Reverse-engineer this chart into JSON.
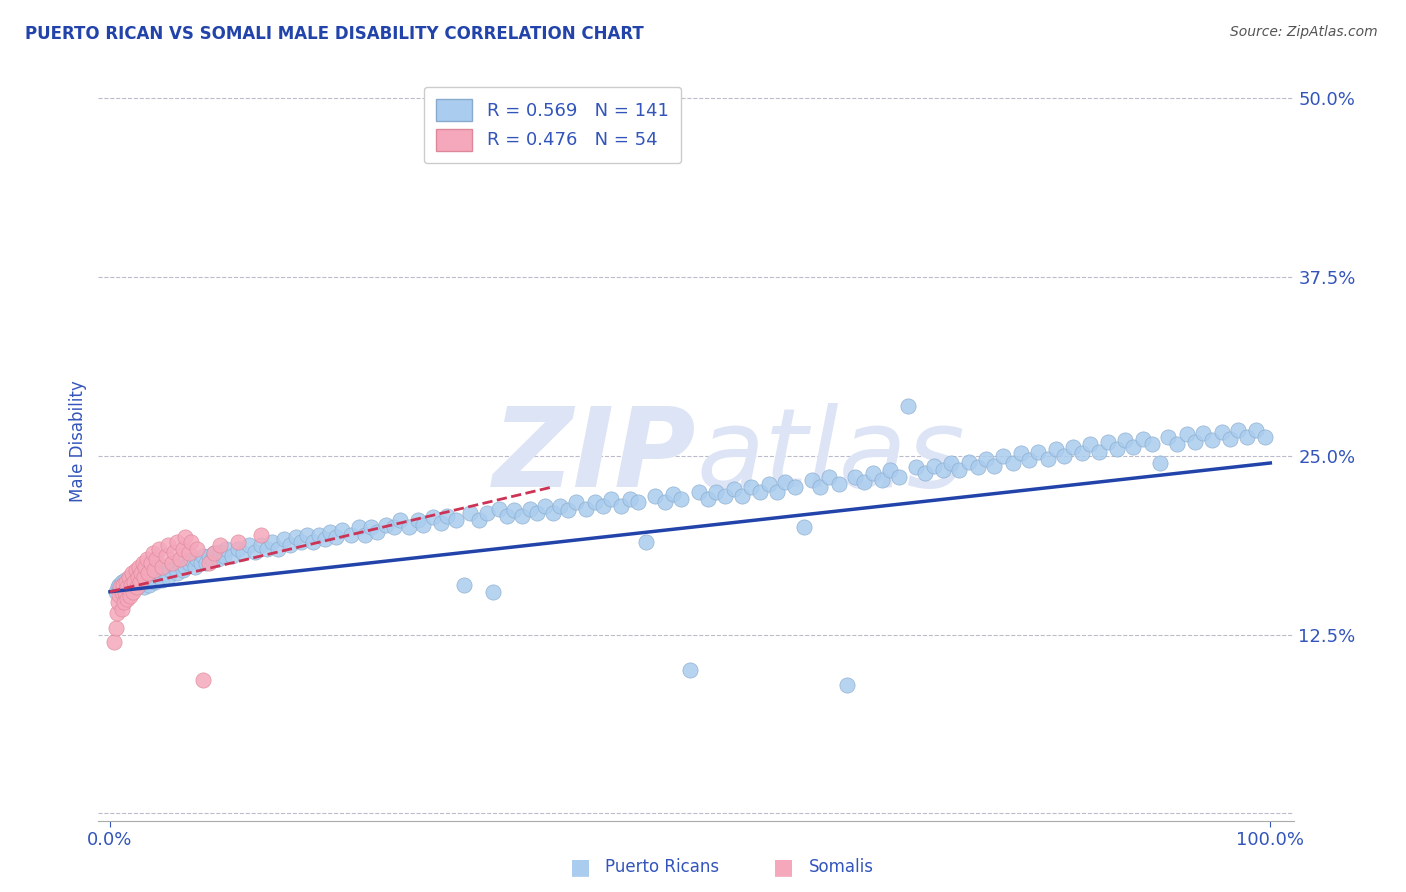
{
  "title": "PUERTO RICAN VS SOMALI MALE DISABILITY CORRELATION CHART",
  "source": "Source: ZipAtlas.com",
  "ylabel": "Male Disability",
  "yticks": [
    0.0,
    0.125,
    0.25,
    0.375,
    0.5
  ],
  "ytick_labels": [
    "",
    "12.5%",
    "25.0%",
    "37.5%",
    "50.0%"
  ],
  "xtick_labels": [
    "0.0%",
    "100.0%"
  ],
  "xlim": [
    -0.01,
    1.02
  ],
  "ylim": [
    -0.005,
    0.525
  ],
  "legend_label_color": "#3355bb",
  "pr_color": "#aaccee",
  "pr_edge": "#88aacc",
  "somali_color": "#f5a8bb",
  "somali_edge": "#dd8899",
  "trend_pr_color": "#2244aa",
  "trend_somali_color": "#cc3355",
  "background_color": "#ffffff",
  "grid_color": "#bbbbcc",
  "watermark_color": "#dde4f5",
  "title_color": "#2244aa",
  "source_color": "#555555",
  "axis_label_color": "#3355bb",
  "pr_trend_x": [
    0.0,
    1.0
  ],
  "pr_trend_y": [
    0.155,
    0.245
  ],
  "somali_trend_x": [
    0.0,
    0.38
  ],
  "somali_trend_y": [
    0.155,
    0.228
  ],
  "pr_points": [
    [
      0.005,
      0.155
    ],
    [
      0.007,
      0.158
    ],
    [
      0.008,
      0.16
    ],
    [
      0.009,
      0.156
    ],
    [
      0.01,
      0.162
    ],
    [
      0.01,
      0.158
    ],
    [
      0.011,
      0.155
    ],
    [
      0.012,
      0.16
    ],
    [
      0.013,
      0.163
    ],
    [
      0.014,
      0.157
    ],
    [
      0.015,
      0.162
    ],
    [
      0.015,
      0.158
    ],
    [
      0.016,
      0.164
    ],
    [
      0.017,
      0.16
    ],
    [
      0.018,
      0.155
    ],
    [
      0.018,
      0.162
    ],
    [
      0.019,
      0.158
    ],
    [
      0.02,
      0.165
    ],
    [
      0.021,
      0.16
    ],
    [
      0.022,
      0.163
    ],
    [
      0.023,
      0.158
    ],
    [
      0.024,
      0.162
    ],
    [
      0.025,
      0.167
    ],
    [
      0.026,
      0.16
    ],
    [
      0.027,
      0.165
    ],
    [
      0.028,
      0.162
    ],
    [
      0.029,
      0.158
    ],
    [
      0.03,
      0.165
    ],
    [
      0.031,
      0.162
    ],
    [
      0.032,
      0.168
    ],
    [
      0.033,
      0.163
    ],
    [
      0.034,
      0.16
    ],
    [
      0.035,
      0.165
    ],
    [
      0.036,
      0.17
    ],
    [
      0.037,
      0.163
    ],
    [
      0.038,
      0.167
    ],
    [
      0.039,
      0.162
    ],
    [
      0.04,
      0.168
    ],
    [
      0.042,
      0.165
    ],
    [
      0.043,
      0.17
    ],
    [
      0.045,
      0.163
    ],
    [
      0.047,
      0.168
    ],
    [
      0.05,
      0.165
    ],
    [
      0.052,
      0.17
    ],
    [
      0.055,
      0.172
    ],
    [
      0.058,
      0.168
    ],
    [
      0.06,
      0.175
    ],
    [
      0.063,
      0.17
    ],
    [
      0.065,
      0.172
    ],
    [
      0.068,
      0.175
    ],
    [
      0.07,
      0.178
    ],
    [
      0.073,
      0.172
    ],
    [
      0.075,
      0.178
    ],
    [
      0.078,
      0.175
    ],
    [
      0.08,
      0.18
    ],
    [
      0.083,
      0.175
    ],
    [
      0.085,
      0.18
    ],
    [
      0.088,
      0.178
    ],
    [
      0.09,
      0.182
    ],
    [
      0.093,
      0.178
    ],
    [
      0.095,
      0.183
    ],
    [
      0.098,
      0.18
    ],
    [
      0.1,
      0.185
    ],
    [
      0.105,
      0.18
    ],
    [
      0.11,
      0.185
    ],
    [
      0.115,
      0.182
    ],
    [
      0.12,
      0.188
    ],
    [
      0.125,
      0.183
    ],
    [
      0.13,
      0.188
    ],
    [
      0.135,
      0.185
    ],
    [
      0.14,
      0.19
    ],
    [
      0.145,
      0.185
    ],
    [
      0.15,
      0.192
    ],
    [
      0.155,
      0.188
    ],
    [
      0.16,
      0.193
    ],
    [
      0.165,
      0.19
    ],
    [
      0.17,
      0.195
    ],
    [
      0.175,
      0.19
    ],
    [
      0.18,
      0.195
    ],
    [
      0.185,
      0.192
    ],
    [
      0.19,
      0.197
    ],
    [
      0.195,
      0.193
    ],
    [
      0.2,
      0.198
    ],
    [
      0.208,
      0.195
    ],
    [
      0.215,
      0.2
    ],
    [
      0.22,
      0.195
    ],
    [
      0.225,
      0.2
    ],
    [
      0.23,
      0.197
    ],
    [
      0.238,
      0.202
    ],
    [
      0.245,
      0.2
    ],
    [
      0.25,
      0.205
    ],
    [
      0.258,
      0.2
    ],
    [
      0.265,
      0.205
    ],
    [
      0.27,
      0.202
    ],
    [
      0.278,
      0.207
    ],
    [
      0.285,
      0.203
    ],
    [
      0.29,
      0.208
    ],
    [
      0.298,
      0.205
    ],
    [
      0.305,
      0.16
    ],
    [
      0.31,
      0.21
    ],
    [
      0.318,
      0.205
    ],
    [
      0.325,
      0.21
    ],
    [
      0.33,
      0.155
    ],
    [
      0.335,
      0.213
    ],
    [
      0.342,
      0.208
    ],
    [
      0.348,
      0.212
    ],
    [
      0.355,
      0.208
    ],
    [
      0.362,
      0.213
    ],
    [
      0.368,
      0.21
    ],
    [
      0.375,
      0.215
    ],
    [
      0.382,
      0.21
    ],
    [
      0.388,
      0.215
    ],
    [
      0.395,
      0.212
    ],
    [
      0.402,
      0.218
    ],
    [
      0.41,
      0.213
    ],
    [
      0.418,
      0.218
    ],
    [
      0.425,
      0.215
    ],
    [
      0.432,
      0.22
    ],
    [
      0.44,
      0.215
    ],
    [
      0.448,
      0.22
    ],
    [
      0.455,
      0.218
    ],
    [
      0.462,
      0.19
    ],
    [
      0.47,
      0.222
    ],
    [
      0.478,
      0.218
    ],
    [
      0.485,
      0.223
    ],
    [
      0.492,
      0.22
    ],
    [
      0.5,
      0.1
    ],
    [
      0.508,
      0.225
    ],
    [
      0.515,
      0.22
    ],
    [
      0.522,
      0.225
    ],
    [
      0.53,
      0.222
    ],
    [
      0.538,
      0.227
    ],
    [
      0.545,
      0.222
    ],
    [
      0.552,
      0.228
    ],
    [
      0.56,
      0.225
    ],
    [
      0.568,
      0.23
    ],
    [
      0.575,
      0.225
    ],
    [
      0.582,
      0.232
    ],
    [
      0.59,
      0.228
    ],
    [
      0.598,
      0.2
    ],
    [
      0.605,
      0.233
    ],
    [
      0.612,
      0.228
    ],
    [
      0.62,
      0.235
    ],
    [
      0.628,
      0.23
    ],
    [
      0.635,
      0.09
    ],
    [
      0.642,
      0.235
    ],
    [
      0.65,
      0.232
    ],
    [
      0.658,
      0.238
    ],
    [
      0.665,
      0.233
    ],
    [
      0.672,
      0.24
    ],
    [
      0.68,
      0.235
    ],
    [
      0.688,
      0.285
    ],
    [
      0.695,
      0.242
    ],
    [
      0.702,
      0.238
    ],
    [
      0.71,
      0.243
    ],
    [
      0.718,
      0.24
    ],
    [
      0.725,
      0.245
    ],
    [
      0.732,
      0.24
    ],
    [
      0.74,
      0.246
    ],
    [
      0.748,
      0.242
    ],
    [
      0.755,
      0.248
    ],
    [
      0.762,
      0.243
    ],
    [
      0.77,
      0.25
    ],
    [
      0.778,
      0.245
    ],
    [
      0.785,
      0.252
    ],
    [
      0.792,
      0.247
    ],
    [
      0.8,
      0.253
    ],
    [
      0.808,
      0.248
    ],
    [
      0.815,
      0.255
    ],
    [
      0.822,
      0.25
    ],
    [
      0.83,
      0.256
    ],
    [
      0.838,
      0.252
    ],
    [
      0.845,
      0.258
    ],
    [
      0.852,
      0.253
    ],
    [
      0.86,
      0.26
    ],
    [
      0.868,
      0.255
    ],
    [
      0.875,
      0.261
    ],
    [
      0.882,
      0.256
    ],
    [
      0.89,
      0.262
    ],
    [
      0.898,
      0.258
    ],
    [
      0.905,
      0.245
    ],
    [
      0.912,
      0.263
    ],
    [
      0.92,
      0.258
    ],
    [
      0.928,
      0.265
    ],
    [
      0.935,
      0.26
    ],
    [
      0.942,
      0.266
    ],
    [
      0.95,
      0.261
    ],
    [
      0.958,
      0.267
    ],
    [
      0.965,
      0.262
    ],
    [
      0.972,
      0.268
    ],
    [
      0.98,
      0.263
    ],
    [
      0.988,
      0.268
    ],
    [
      0.995,
      0.263
    ]
  ],
  "somali_points": [
    [
      0.003,
      0.12
    ],
    [
      0.005,
      0.13
    ],
    [
      0.006,
      0.14
    ],
    [
      0.007,
      0.148
    ],
    [
      0.008,
      0.153
    ],
    [
      0.009,
      0.158
    ],
    [
      0.01,
      0.143
    ],
    [
      0.01,
      0.155
    ],
    [
      0.011,
      0.16
    ],
    [
      0.012,
      0.148
    ],
    [
      0.013,
      0.155
    ],
    [
      0.014,
      0.162
    ],
    [
      0.015,
      0.15
    ],
    [
      0.015,
      0.158
    ],
    [
      0.016,
      0.165
    ],
    [
      0.017,
      0.152
    ],
    [
      0.018,
      0.16
    ],
    [
      0.019,
      0.168
    ],
    [
      0.02,
      0.155
    ],
    [
      0.021,
      0.162
    ],
    [
      0.022,
      0.17
    ],
    [
      0.023,
      0.158
    ],
    [
      0.024,
      0.165
    ],
    [
      0.025,
      0.172
    ],
    [
      0.026,
      0.162
    ],
    [
      0.027,
      0.168
    ],
    [
      0.028,
      0.175
    ],
    [
      0.029,
      0.165
    ],
    [
      0.03,
      0.172
    ],
    [
      0.032,
      0.178
    ],
    [
      0.033,
      0.168
    ],
    [
      0.035,
      0.175
    ],
    [
      0.037,
      0.182
    ],
    [
      0.038,
      0.17
    ],
    [
      0.04,
      0.178
    ],
    [
      0.042,
      0.185
    ],
    [
      0.045,
      0.172
    ],
    [
      0.048,
      0.18
    ],
    [
      0.05,
      0.188
    ],
    [
      0.053,
      0.175
    ],
    [
      0.055,
      0.183
    ],
    [
      0.058,
      0.19
    ],
    [
      0.06,
      0.178
    ],
    [
      0.063,
      0.185
    ],
    [
      0.065,
      0.193
    ],
    [
      0.068,
      0.182
    ],
    [
      0.07,
      0.19
    ],
    [
      0.075,
      0.185
    ],
    [
      0.08,
      0.093
    ],
    [
      0.085,
      0.175
    ],
    [
      0.09,
      0.182
    ],
    [
      0.095,
      0.188
    ],
    [
      0.11,
      0.19
    ],
    [
      0.13,
      0.195
    ]
  ]
}
